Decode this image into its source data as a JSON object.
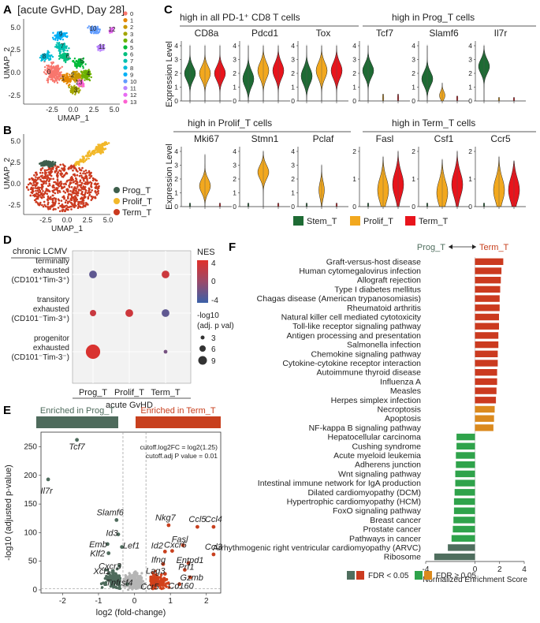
{
  "panel_labels": {
    "a": "A",
    "b": "B",
    "c": "C",
    "d": "D",
    "e": "E",
    "f": "F"
  },
  "panel_a": {
    "title": "[acute GvHD, Day 28]",
    "xlabel": "UMAP_1",
    "ylabel": "UMAP_2",
    "x_ticks": [
      "-2.5",
      "0.0",
      "2.5",
      "5.0"
    ],
    "y_ticks": [
      "5.0",
      "2.5",
      "0.0",
      "-2.5"
    ],
    "cluster_ids": [
      "0",
      "1",
      "2",
      "3",
      "4",
      "5",
      "6",
      "7",
      "8",
      "9",
      "10",
      "11",
      "12",
      "13"
    ],
    "cluster_colors": [
      "#F8766D",
      "#E58700",
      "#C99800",
      "#A3A500",
      "#6BB100",
      "#00BA38",
      "#00BF7D",
      "#00C0AF",
      "#00BCD8",
      "#00B0F6",
      "#619CFF",
      "#B983FF",
      "#E76BF3",
      "#FD61D1"
    ]
  },
  "panel_b": {
    "xlabel": "UMAP_1",
    "ylabel": "UMAP_2",
    "x_ticks": [
      "-2.5",
      "0.0",
      "2.5",
      "5.0"
    ],
    "y_ticks": [
      "5.0",
      "2.5",
      "0.0",
      "-2.5"
    ],
    "legend": [
      {
        "label": "Prog_T",
        "color": "#3E5E4C"
      },
      {
        "label": "Prolif_T",
        "color": "#F2B82A"
      },
      {
        "label": "Term_T",
        "color": "#CB3A1F"
      }
    ]
  },
  "panel_c": {
    "ylabel": "Expression Level",
    "group_headers": [
      "high in all PD-1⁺ CD8 T cells",
      "high in Prog_T cells",
      "high in Prolif_T cells",
      "high in Term_T cells"
    ],
    "legend": [
      {
        "label": "Stem_T",
        "color": "#1E6B34"
      },
      {
        "label": "Prolif_T",
        "color": "#F2A81E"
      },
      {
        "label": "Term_T",
        "color": "#E8141C"
      }
    ],
    "genes_row1": [
      "CD8a",
      "Pdcd1",
      "Tox",
      "Tcf7",
      "Slamf6",
      "Il7r"
    ],
    "genes_row2": [
      "Mki67",
      "Stmn1",
      "Pclaf",
      "Fasl",
      "Csf1",
      "Ccr5"
    ],
    "ticks_4": [
      "4",
      "3",
      "2",
      "1",
      "0"
    ],
    "ticks_2": [
      "2",
      "1",
      "0"
    ]
  },
  "panel_d": {
    "title": "chronic LCMV",
    "rows": [
      "terminally exhausted (CD101⁺Tim-3⁺)",
      "transitory exhausted (CD101⁻Tim-3⁺)",
      "progenitor exhausted (CD101⁻Tim-3⁻)"
    ],
    "cols": [
      "Prog_T",
      "Prolif_T",
      "Term_T"
    ],
    "xlabel": "acute GvHD",
    "nes_title": "NES",
    "nes_ticks": [
      "4",
      "0",
      "-4"
    ],
    "size_title": "-log10 (adj. p val)",
    "size_ticks": [
      "3",
      "6",
      "9"
    ],
    "dots": [
      {
        "row": 0,
        "col": 0,
        "nes": -2.5,
        "logp": 4
      },
      {
        "row": 0,
        "col": 2,
        "nes": 2.8,
        "logp": 4
      },
      {
        "row": 1,
        "col": 0,
        "nes": 2.6,
        "logp": 3
      },
      {
        "row": 1,
        "col": 1,
        "nes": 2.9,
        "logp": 4
      },
      {
        "row": 1,
        "col": 2,
        "nes": -2.5,
        "logp": 4
      },
      {
        "row": 2,
        "col": 0,
        "nes": 3.6,
        "logp": 9
      },
      {
        "row": 2,
        "col": 2,
        "nes": -1.5,
        "logp": 1
      }
    ]
  },
  "panel_e": {
    "enriched_left": "Enriched in Prog_T",
    "enriched_right": "Enriched in Term_T",
    "cutoff_line1": "cutoff.log2FC = log2(1.25)",
    "cutoff_line2": "cutoff.adj P value = 0.01",
    "xlabel": "log2 (fold-change)",
    "ylabel": "-log10 (adjusted p-value)",
    "x_ticks": [
      "-2",
      "-1",
      "0",
      "1",
      "2"
    ],
    "y_ticks": [
      "250",
      "200",
      "150",
      "100",
      "50",
      "0"
    ],
    "genes": [
      {
        "name": "Tcf7",
        "x": -1.6,
        "y": 262
      },
      {
        "name": "Il7r",
        "x": -2.4,
        "y": 193
      },
      {
        "name": "Slamf6",
        "x": -0.5,
        "y": 122
      },
      {
        "name": "Id3",
        "x": -0.45,
        "y": 97
      },
      {
        "name": "Emb",
        "x": -0.75,
        "y": 80
      },
      {
        "name": "Lef1",
        "x": -0.35,
        "y": 75
      },
      {
        "name": "Klf2",
        "x": -0.72,
        "y": 64
      },
      {
        "name": "Cxcr3",
        "x": -0.42,
        "y": 42
      },
      {
        "name": "Xcl1",
        "x": -0.6,
        "y": 33
      },
      {
        "name": "Tnfrsf4",
        "x": -0.2,
        "y": 10
      },
      {
        "name": "Nkg7",
        "x": 0.95,
        "y": 113
      },
      {
        "name": "Ccl5",
        "x": 1.75,
        "y": 110
      },
      {
        "name": "Ccl4",
        "x": 2.2,
        "y": 110
      },
      {
        "name": "Ccl3",
        "x": 2.2,
        "y": 62
      },
      {
        "name": "Fasl",
        "x": 1.35,
        "y": 78
      },
      {
        "name": "Id2",
        "x": 0.85,
        "y": 67
      },
      {
        "name": "Cxcr6",
        "x": 1.05,
        "y": 68
      },
      {
        "name": "Ifng",
        "x": 0.8,
        "y": 45
      },
      {
        "name": "Entpd1",
        "x": 1.5,
        "y": 47
      },
      {
        "name": "Prf1",
        "x": 1.4,
        "y": 35
      },
      {
        "name": "Lag3",
        "x": 0.85,
        "y": 28
      },
      {
        "name": "Gzmb",
        "x": 1.55,
        "y": 22
      },
      {
        "name": "Ccr5",
        "x": 0.6,
        "y": 12
      },
      {
        "name": "Cd160",
        "x": 1.25,
        "y": 10
      }
    ]
  },
  "chart_data": {
    "type": "bar",
    "title_left": "Prog_T",
    "title_right": "Term_T",
    "xlabel": "Normalized Enrichment Score",
    "x_ticks": [
      "-4",
      "0",
      "2",
      "4"
    ],
    "xlim": [
      -4,
      4
    ],
    "legend_fdr_lt": "FDR < 0.05",
    "legend_fdr_ge": "FDR ≥ 0.05",
    "categories": [
      "Graft-versus-host disease",
      "Human cytomegalovirus infection",
      "Allograft rejection",
      "Type I diabetes mellitus",
      "Chagas disease (American trypanosomiasis)",
      "Rheumatoid arthritis",
      "Natural killer cell mediated cytotoxicity",
      "Toll-like receptor signaling pathway",
      "Antigen processing and presentation",
      "Salmonella infection",
      "Chemokine signaling pathway",
      "Cytokine-cytokine receptor interaction",
      "Autoimmune thyroid disease",
      "Influenza A",
      "Measles",
      "Herpes simplex infection",
      "Necroptosis",
      "Apoptosis",
      "NF-kappa B signaling pathway",
      "Hepatocellular carcinoma",
      "Cushing syndrome",
      "Acute myeloid leukemia",
      "Adherens junction",
      "Wnt signaling pathway",
      "Intestinal immune network for IgA production",
      "Dilated cardiomyopathy (DCM)",
      "Hypertrophic cardiomyopathy (HCM)",
      "FoxO signaling pathway",
      "Breast cancer",
      "Prostate cancer",
      "Pathways in cancer",
      "Arrhythmogenic right ventricular cardiomyopathy (ARVC)",
      "Ribosome"
    ],
    "values": [
      2.3,
      2.15,
      2.1,
      2.05,
      2.0,
      2.0,
      1.95,
      1.95,
      1.9,
      1.9,
      1.85,
      1.85,
      1.8,
      1.8,
      1.75,
      1.7,
      1.6,
      1.55,
      1.5,
      -1.5,
      -1.5,
      -1.55,
      -1.55,
      -1.6,
      -1.6,
      -1.65,
      -1.7,
      -1.7,
      -1.75,
      -1.8,
      -1.9,
      -2.2,
      -3.3
    ],
    "colors": [
      "#CB3A1F",
      "#CB3A1F",
      "#CB3A1F",
      "#CB3A1F",
      "#CB3A1F",
      "#CB3A1F",
      "#CB3A1F",
      "#CB3A1F",
      "#CB3A1F",
      "#CB3A1F",
      "#CB3A1F",
      "#CB3A1F",
      "#CB3A1F",
      "#CB3A1F",
      "#CB3A1F",
      "#CB3A1F",
      "#DB8A1E",
      "#DB8A1E",
      "#DB8A1E",
      "#2FA34B",
      "#2FA34B",
      "#2FA34B",
      "#2FA34B",
      "#2FA34B",
      "#2FA34B",
      "#2FA34B",
      "#2FA34B",
      "#2FA34B",
      "#2FA34B",
      "#2FA34B",
      "#2FA34B",
      "#4F6E5E",
      "#4F6E5E"
    ]
  }
}
